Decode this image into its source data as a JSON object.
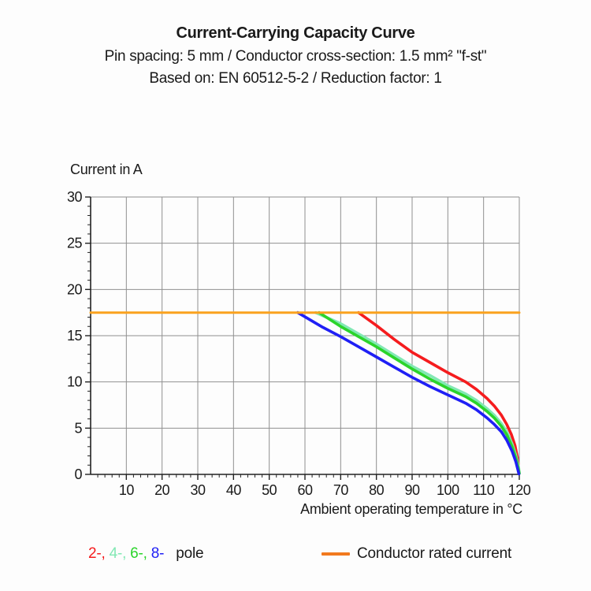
{
  "header": {
    "title": "Current-Carrying Capacity Curve",
    "subtitle1": "Pin spacing: 5 mm / Conductor cross-section: 1.5 mm² \"f-st\"",
    "subtitle2": "Based on: EN 60512-5-2 / Reduction factor: 1"
  },
  "chart_data": {
    "type": "line",
    "title": "Current-Carrying Capacity Curve",
    "xlabel": "Ambient operating temperature in °C",
    "ylabel": "Current in A",
    "xlim": [
      0,
      120
    ],
    "ylim": [
      0,
      30
    ],
    "xticks": [
      10,
      20,
      30,
      40,
      50,
      60,
      70,
      80,
      90,
      100,
      110,
      120
    ],
    "yticks": [
      0,
      5,
      10,
      15,
      20,
      25,
      30
    ],
    "x_minor_step": 2,
    "y_minor_step": 1,
    "grid": true,
    "grid_color": "#909090",
    "axis_color": "#222222",
    "rated_current_a": 17.5,
    "series": [
      {
        "name": "2-pole",
        "color": "#f51c1e",
        "points": [
          [
            75,
            17.5
          ],
          [
            80,
            16.1
          ],
          [
            85,
            14.6
          ],
          [
            90,
            13.2
          ],
          [
            95,
            12.1
          ],
          [
            100,
            11.0
          ],
          [
            105,
            10.0
          ],
          [
            108,
            9.2
          ],
          [
            111,
            8.2
          ],
          [
            113,
            7.4
          ],
          [
            115,
            6.4
          ],
          [
            116.5,
            5.4
          ],
          [
            117.8,
            4.3
          ],
          [
            118.8,
            3.1
          ],
          [
            119.5,
            1.8
          ],
          [
            119.9,
            0.2
          ]
        ]
      },
      {
        "name": "4-pole",
        "color": "#82e8b4",
        "points": [
          [
            63,
            17.5
          ],
          [
            70,
            16.3
          ],
          [
            75,
            15.2
          ],
          [
            80,
            14.1
          ],
          [
            85,
            12.9
          ],
          [
            90,
            11.7
          ],
          [
            95,
            10.7
          ],
          [
            100,
            9.6
          ],
          [
            105,
            8.7
          ],
          [
            108,
            8.0
          ],
          [
            111,
            7.1
          ],
          [
            113,
            6.4
          ],
          [
            115,
            5.5
          ],
          [
            116.5,
            4.6
          ],
          [
            118,
            3.3
          ],
          [
            119,
            2.1
          ],
          [
            119.8,
            0.8
          ],
          [
            120,
            0.15
          ]
        ]
      },
      {
        "name": "6-pole",
        "color": "#2bd42b",
        "points": [
          [
            64,
            17.5
          ],
          [
            70,
            16.0
          ],
          [
            75,
            14.9
          ],
          [
            80,
            13.8
          ],
          [
            85,
            12.6
          ],
          [
            90,
            11.4
          ],
          [
            95,
            10.3
          ],
          [
            100,
            9.3
          ],
          [
            105,
            8.4
          ],
          [
            108,
            7.7
          ],
          [
            111,
            6.8
          ],
          [
            113,
            6.1
          ],
          [
            115,
            5.2
          ],
          [
            116.5,
            4.3
          ],
          [
            118,
            3.0
          ],
          [
            119,
            1.8
          ],
          [
            119.7,
            0.7
          ],
          [
            120,
            0.1
          ]
        ]
      },
      {
        "name": "8-pole",
        "color": "#1f1ff5",
        "points": [
          [
            58,
            17.5
          ],
          [
            65,
            15.9
          ],
          [
            70,
            14.9
          ],
          [
            75,
            13.8
          ],
          [
            80,
            12.7
          ],
          [
            85,
            11.6
          ],
          [
            90,
            10.5
          ],
          [
            95,
            9.5
          ],
          [
            100,
            8.6
          ],
          [
            105,
            7.7
          ],
          [
            108,
            7.0
          ],
          [
            111,
            6.1
          ],
          [
            113,
            5.4
          ],
          [
            115,
            4.6
          ],
          [
            116.5,
            3.7
          ],
          [
            118,
            2.5
          ],
          [
            119,
            1.4
          ],
          [
            119.6,
            0.5
          ],
          [
            119.9,
            0.05
          ]
        ]
      },
      {
        "name": "Conductor rated current",
        "role": "rated",
        "color": "#faa21e",
        "points": [
          [
            0,
            17.5
          ],
          [
            120,
            17.5
          ]
        ]
      }
    ]
  },
  "legend": {
    "pole_items": [
      {
        "label": "2-,",
        "color": "#f51c1e"
      },
      {
        "label": "4-,",
        "color": "#82e8b4"
      },
      {
        "label": "6-,",
        "color": "#2bd42b"
      },
      {
        "label": "8-",
        "color": "#1f1ff5"
      }
    ],
    "pole_suffix": "pole",
    "rated_label": "Conductor rated current",
    "rated_swatch_color": "#f2791e"
  }
}
